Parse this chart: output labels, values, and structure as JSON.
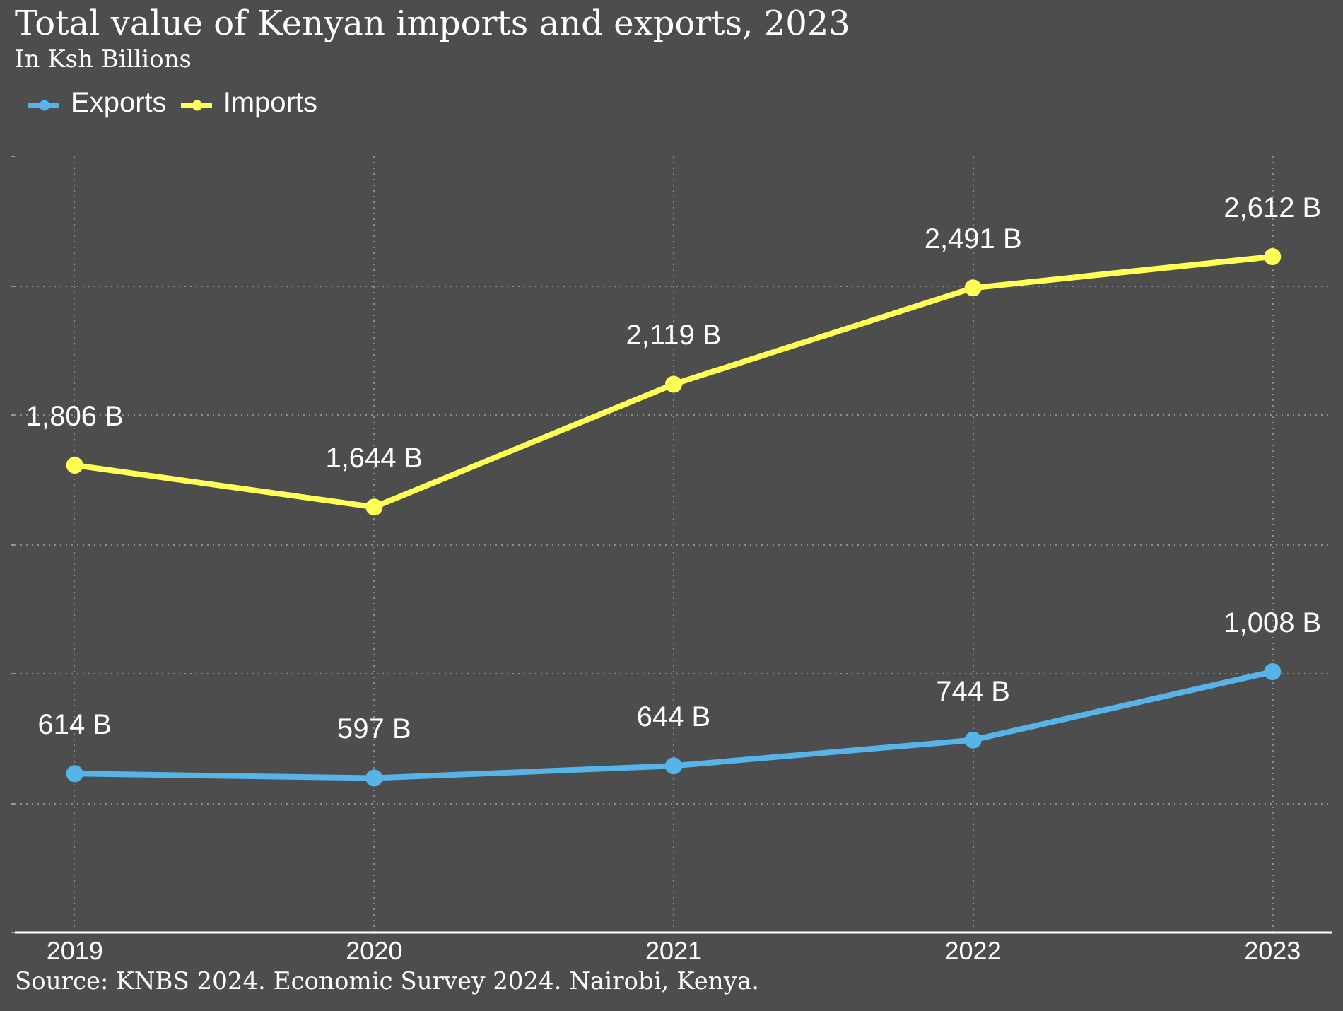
{
  "chart_data": {
    "type": "line",
    "title": "Total value of Kenyan imports and exports, 2023",
    "subtitle": "In Ksh Billions",
    "annotations": [
      "Source: KNBS 2024. Economic Survey 2024. Nairobi, Kenya."
    ],
    "categories": [
      "2019",
      "2020",
      "2021",
      "2022",
      "2023"
    ],
    "series": [
      {
        "name": "Exports",
        "color": "#56b4e9",
        "values": [
          614,
          597,
          644,
          744,
          1008
        ],
        "value_labels": [
          "614 B",
          "597 B",
          "644 B",
          "744 B",
          "1,008 B"
        ]
      },
      {
        "name": "Imports",
        "color": "#ffff55",
        "values": [
          1806,
          1644,
          2119,
          2491,
          2612
        ],
        "value_labels": [
          "1,806 B",
          "1,644 B",
          "2,119 B",
          "2,491 B",
          "2,612 B"
        ]
      }
    ],
    "yticks": [
      {
        "value": 0,
        "label": null
      },
      {
        "value": 500,
        "label": null
      },
      {
        "value": 1000,
        "label": null
      },
      {
        "value": 1500,
        "label": null
      },
      {
        "value": 2000,
        "label": null
      },
      {
        "value": 2500,
        "label": null
      },
      {
        "value": 3000,
        "label": null
      }
    ],
    "tick_labels": "x",
    "grid": true,
    "legend": "top left",
    "marker": "circle",
    "line_style": "solid"
  }
}
